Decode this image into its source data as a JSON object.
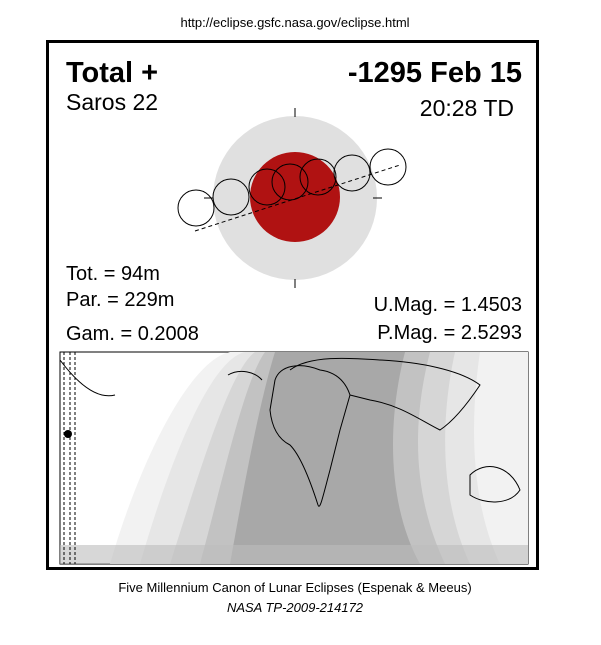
{
  "header": {
    "url": "http://eclipse.gsfc.nasa.gov/eclipse.html"
  },
  "eclipse": {
    "type": "Total  +",
    "date": "-1295 Feb 15",
    "saros": "Saros  22",
    "time": "20:28 TD",
    "total_duration": "Tot. =  94m",
    "partial_duration": "Par. = 229m",
    "gamma": "Gam. = 0.2008",
    "umbral_magnitude": "U.Mag. = 1.4503",
    "penumbral_magnitude": "P.Mag. = 2.5293"
  },
  "footer": {
    "line1": "Five Millennium Canon of Lunar Eclipses (Espenak & Meeus)",
    "line2": "NASA TP-2009-214172"
  }
}
